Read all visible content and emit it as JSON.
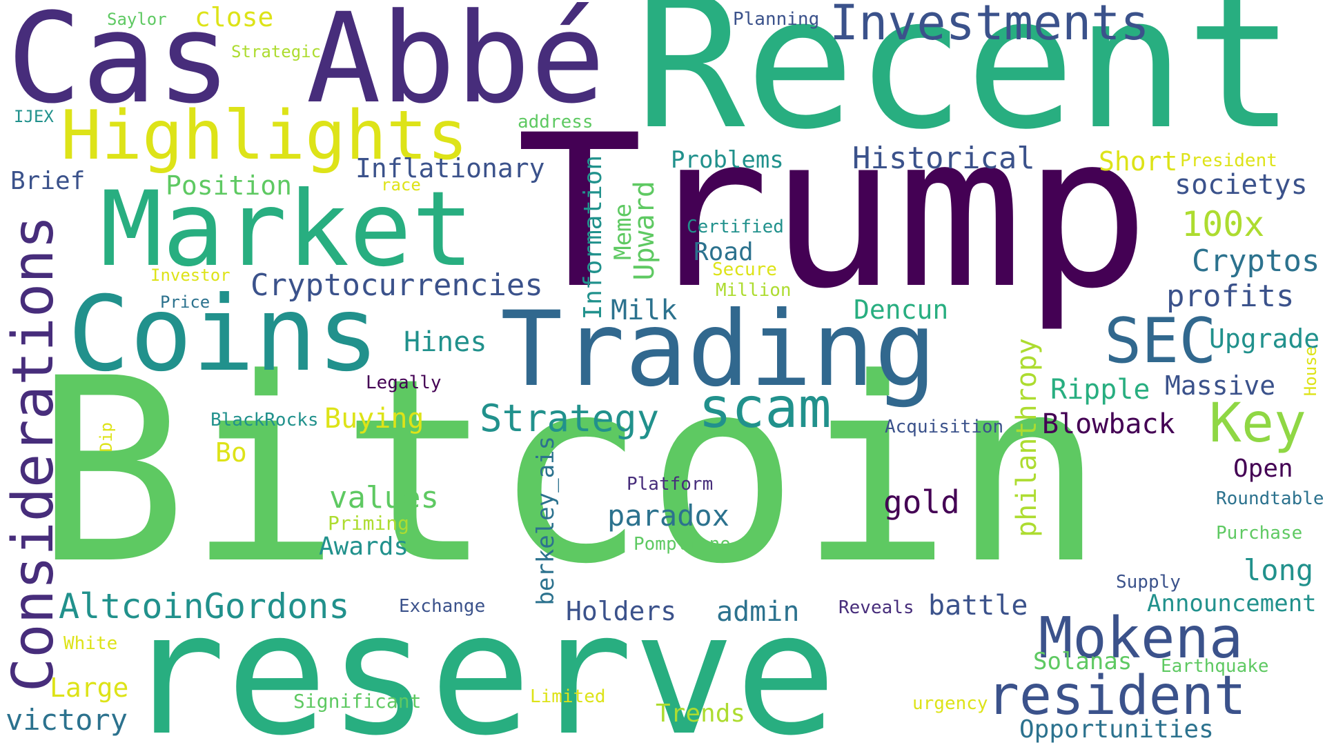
{
  "palette": {
    "purple_dark": "#440154",
    "purple": "#472d7b",
    "indigo": "#3b528b",
    "blue": "#2c728e",
    "teal": "#21918c",
    "green_teal": "#28ae80",
    "green": "#5ec962",
    "lime": "#addc30",
    "yellow": "#fde725"
  },
  "words": [
    {
      "id": "bitcoin",
      "text": "Bitcoin"
    },
    {
      "id": "trump",
      "text": "Trump"
    },
    {
      "id": "recent",
      "text": "Recent"
    },
    {
      "id": "reserve",
      "text": "reserve"
    },
    {
      "id": "cas-abbe",
      "text": "Cas Abbé"
    },
    {
      "id": "trading",
      "text": "Trading"
    },
    {
      "id": "coins",
      "text": "Coins"
    },
    {
      "id": "market",
      "text": "Market"
    },
    {
      "id": "highlights",
      "text": "Highlights"
    },
    {
      "id": "considerations",
      "text": "Considerations"
    },
    {
      "id": "investments",
      "text": "Investments"
    },
    {
      "id": "mokena",
      "text": "Mokena"
    },
    {
      "id": "resident",
      "text": "resident"
    },
    {
      "id": "sec",
      "text": "SEC"
    },
    {
      "id": "scam",
      "text": "scam"
    },
    {
      "id": "key",
      "text": "Key"
    },
    {
      "id": "altcoingordons",
      "text": "AltcoinGordons"
    },
    {
      "id": "cryptocurrencies",
      "text": "Cryptocurrencies"
    },
    {
      "id": "strategy",
      "text": "Strategy"
    },
    {
      "id": "historical",
      "text": "Historical"
    },
    {
      "id": "inflationary",
      "text": "Inflationary"
    },
    {
      "id": "position",
      "text": "Position"
    },
    {
      "id": "brief",
      "text": "Brief"
    },
    {
      "id": "close",
      "text": "close"
    },
    {
      "id": "saylor",
      "text": "Saylor"
    },
    {
      "id": "strategic",
      "text": "Strategic"
    },
    {
      "id": "ijex",
      "text": "IJEX"
    },
    {
      "id": "address",
      "text": "address"
    },
    {
      "id": "planning",
      "text": "Planning"
    },
    {
      "id": "problems",
      "text": "Problems"
    },
    {
      "id": "short",
      "text": "Short"
    },
    {
      "id": "president",
      "text": "President"
    },
    {
      "id": "societys",
      "text": "societys"
    },
    {
      "id": "100x",
      "text": "100x"
    },
    {
      "id": "cryptos",
      "text": "Cryptos"
    },
    {
      "id": "profits",
      "text": "profits"
    },
    {
      "id": "upgrade",
      "text": "Upgrade"
    },
    {
      "id": "massive",
      "text": "Massive"
    },
    {
      "id": "ripple",
      "text": "Ripple"
    },
    {
      "id": "blowback",
      "text": "Blowback"
    },
    {
      "id": "open",
      "text": "Open"
    },
    {
      "id": "roundtable",
      "text": "Roundtable"
    },
    {
      "id": "purchase",
      "text": "Purchase"
    },
    {
      "id": "long",
      "text": "long"
    },
    {
      "id": "supply",
      "text": "Supply"
    },
    {
      "id": "announcement",
      "text": "Announcement"
    },
    {
      "id": "solanas",
      "text": "Solanas"
    },
    {
      "id": "earthquake",
      "text": "Earthquake"
    },
    {
      "id": "opportunities",
      "text": "Opportunities"
    },
    {
      "id": "urgency",
      "text": "urgency"
    },
    {
      "id": "trends",
      "text": "Trends"
    },
    {
      "id": "limited",
      "text": "Limited"
    },
    {
      "id": "significant",
      "text": "Significant"
    },
    {
      "id": "victory",
      "text": "victory"
    },
    {
      "id": "large",
      "text": "Large"
    },
    {
      "id": "white",
      "text": "White"
    },
    {
      "id": "exchange",
      "text": "Exchange"
    },
    {
      "id": "holders",
      "text": "Holders"
    },
    {
      "id": "admin",
      "text": "admin"
    },
    {
      "id": "reveals",
      "text": "Reveals"
    },
    {
      "id": "battle",
      "text": "battle"
    },
    {
      "id": "awards",
      "text": "Awards"
    },
    {
      "id": "priming",
      "text": "Priming"
    },
    {
      "id": "values",
      "text": "values"
    },
    {
      "id": "pompliano",
      "text": "Pompliano"
    },
    {
      "id": "paradox",
      "text": "paradox"
    },
    {
      "id": "platform",
      "text": "Platform"
    },
    {
      "id": "gold",
      "text": "gold"
    },
    {
      "id": "acquisition",
      "text": "Acquisition"
    },
    {
      "id": "bo",
      "text": "Bo"
    },
    {
      "id": "buying",
      "text": "Buying"
    },
    {
      "id": "blackrocks",
      "text": "BlackRocks"
    },
    {
      "id": "legally",
      "text": "Legally"
    },
    {
      "id": "hines",
      "text": "Hines"
    },
    {
      "id": "milk",
      "text": "Milk"
    },
    {
      "id": "dencun",
      "text": "Dencun"
    },
    {
      "id": "million",
      "text": "Million"
    },
    {
      "id": "secure",
      "text": "Secure"
    },
    {
      "id": "road",
      "text": "Road"
    },
    {
      "id": "certified",
      "text": "Certified"
    },
    {
      "id": "investor",
      "text": "Investor"
    },
    {
      "id": "price",
      "text": "Price"
    },
    {
      "id": "race",
      "text": "race"
    },
    {
      "id": "information",
      "text": "Information"
    },
    {
      "id": "meme",
      "text": "Meme"
    },
    {
      "id": "upward",
      "text": "Upward"
    },
    {
      "id": "berkeley-ais",
      "text": "berkeley_ais"
    },
    {
      "id": "philanthropy",
      "text": "philanthropy"
    },
    {
      "id": "dip",
      "text": "Dip"
    },
    {
      "id": "house",
      "text": "House"
    }
  ]
}
